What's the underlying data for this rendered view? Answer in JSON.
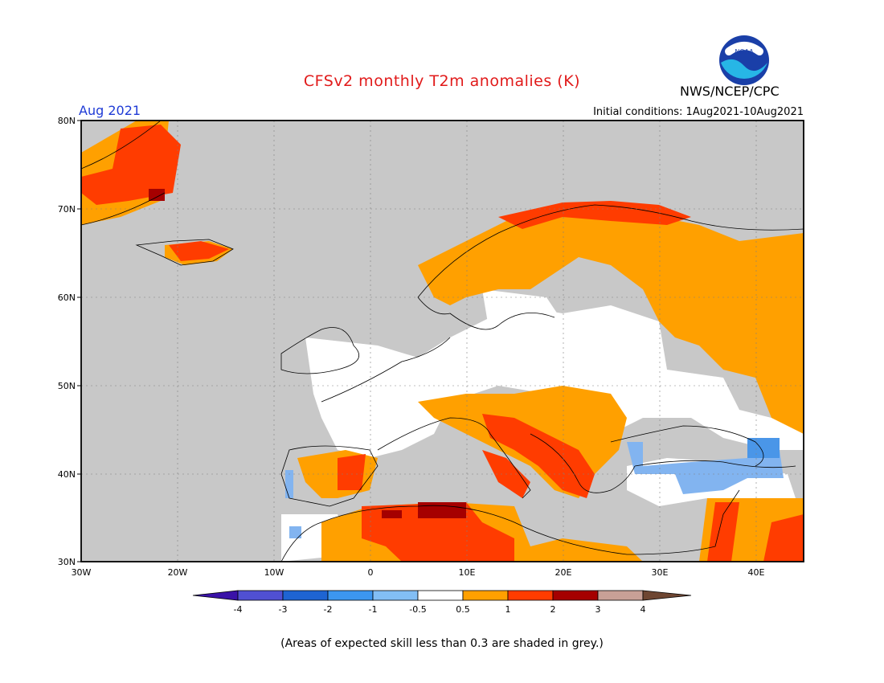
{
  "header": {
    "title": "CFSv2 monthly T2m anomalies (K)",
    "agency": "NWS/NCEP/CPC",
    "month": "Aug 2021",
    "initial_conditions": "Initial conditions: 1Aug2021-10Aug2021",
    "logo_text": "NOAA"
  },
  "map": {
    "lat_labels": [
      "80N",
      "70N",
      "60N",
      "50N",
      "40N",
      "30N"
    ],
    "lon_labels": [
      "30W",
      "20W",
      "10W",
      "0",
      "10E",
      "20E",
      "30E",
      "40E"
    ],
    "lon_range": [
      -30,
      45
    ],
    "lat_range": [
      30,
      80
    ],
    "colors": {
      "grey": "#c8c8c8",
      "white": "#ffffff",
      "orange": "#ffa000",
      "red": "#ff3c00",
      "darkred": "#a50000",
      "lightblue": "#82b4f0",
      "blue": "#4a96e8"
    }
  },
  "colorbar": {
    "labels": [
      "-4",
      "-3",
      "-2",
      "-1",
      "-0.5",
      "0.5",
      "1",
      "2",
      "3",
      "4"
    ],
    "colors": [
      "#3a12a8",
      "#5050d2",
      "#1e64d2",
      "#3c96f0",
      "#82bef5",
      "#ffffff",
      "#ffa000",
      "#ff3c00",
      "#a50000",
      "#c8a096",
      "#6e4632"
    ]
  },
  "footnote": "(Areas of expected skill less than 0.3 are shaded in grey.)"
}
